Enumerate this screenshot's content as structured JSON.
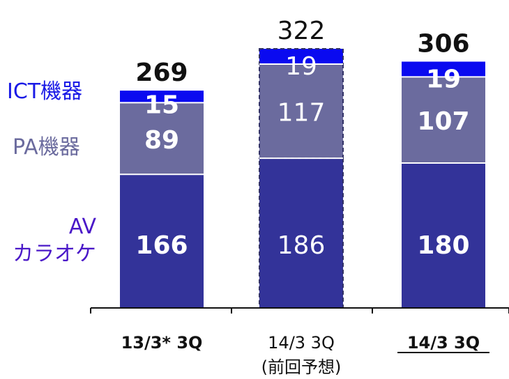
{
  "chart_data": {
    "type": "bar",
    "stacked": true,
    "categories": [
      "13/3* 3Q",
      "14/3 3Q",
      "14/3 3Q"
    ],
    "category_notes": [
      "",
      "(前回予想)",
      ""
    ],
    "category_underlined": [
      false,
      false,
      true
    ],
    "category_bold": [
      true,
      false,
      true
    ],
    "forecast": [
      false,
      true,
      false
    ],
    "series": [
      {
        "name": "AV\nカラオケ",
        "name_lines": [
          "AV",
          "カラオケ"
        ],
        "values": [
          166,
          186,
          180
        ],
        "color": "#333399"
      },
      {
        "name": "PA機器",
        "values": [
          89,
          117,
          107
        ],
        "color": "#6b6b9e"
      },
      {
        "name": "ICT機器",
        "values": [
          15,
          19,
          19
        ],
        "color": "#0a0af0"
      }
    ],
    "totals": [
      269,
      322,
      306
    ],
    "ylim": [
      0,
      322
    ],
    "grid": false,
    "legend": "left"
  }
}
